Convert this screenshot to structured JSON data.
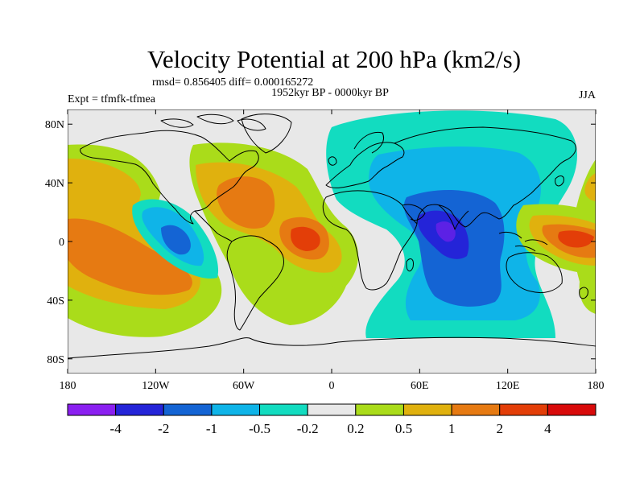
{
  "title": "Velocity Potential at 200 hPa (km2/s)",
  "stats": "rmsd= 0.856405 diff= 0.000165272",
  "experiment": "Expt = tfmfk-tfmea",
  "period": "1952kyr BP - 0000kyr BP",
  "season": "JJA",
  "map_data": {
    "type": "filled-contour map",
    "projection": "cylindrical equidistant",
    "lon_range": [
      -180,
      180
    ],
    "lat_range": [
      -90,
      90
    ],
    "lon_ticks": [
      "180",
      "120W",
      "60W",
      "0",
      "60E",
      "120E",
      "180"
    ],
    "lat_ticks": [
      "80N",
      "40N",
      "0",
      "40S",
      "80S"
    ],
    "features": [
      {
        "sign": "positive",
        "level": 1,
        "lon": -170,
        "lat": -15,
        "note": "band over eastern/central Pacific"
      },
      {
        "sign": "positive",
        "level": 2,
        "lon": -55,
        "lat": 20,
        "note": "Caribbean / North Atlantic"
      },
      {
        "sign": "positive",
        "level": 4,
        "lon": -15,
        "lat": 0,
        "note": "equatorial Atlantic maximum"
      },
      {
        "sign": "positive",
        "level": 2,
        "lon": 160,
        "lat": 0,
        "note": "western Pacific maritime region"
      },
      {
        "sign": "negative",
        "level": -2,
        "lon": -100,
        "lat": 0,
        "note": "eastern Pacific minimum"
      },
      {
        "sign": "negative",
        "level": -4,
        "lon": 80,
        "lat": -5,
        "note": "Indian Ocean minimum"
      },
      {
        "sign": "negative",
        "level": -1,
        "lon": 90,
        "lat": 20,
        "note": "Asia and Indian Ocean"
      },
      {
        "sign": "negative",
        "level": -0.5,
        "lon": 60,
        "lat": 60,
        "note": "Eurasia high latitudes"
      }
    ]
  },
  "colorbar": {
    "labels": [
      "-4",
      "-2",
      "-1",
      "-0.5",
      "-0.2",
      "0.2",
      "0.5",
      "1",
      "2",
      "4"
    ],
    "colors": [
      "#8a1ff0",
      "#2424d8",
      "#1464d4",
      "#0fb4e8",
      "#12dcc0",
      "#e8e8e8",
      "#aadc1a",
      "#e0b10e",
      "#e67a12",
      "#e33e08",
      "#d80a0a"
    ]
  }
}
